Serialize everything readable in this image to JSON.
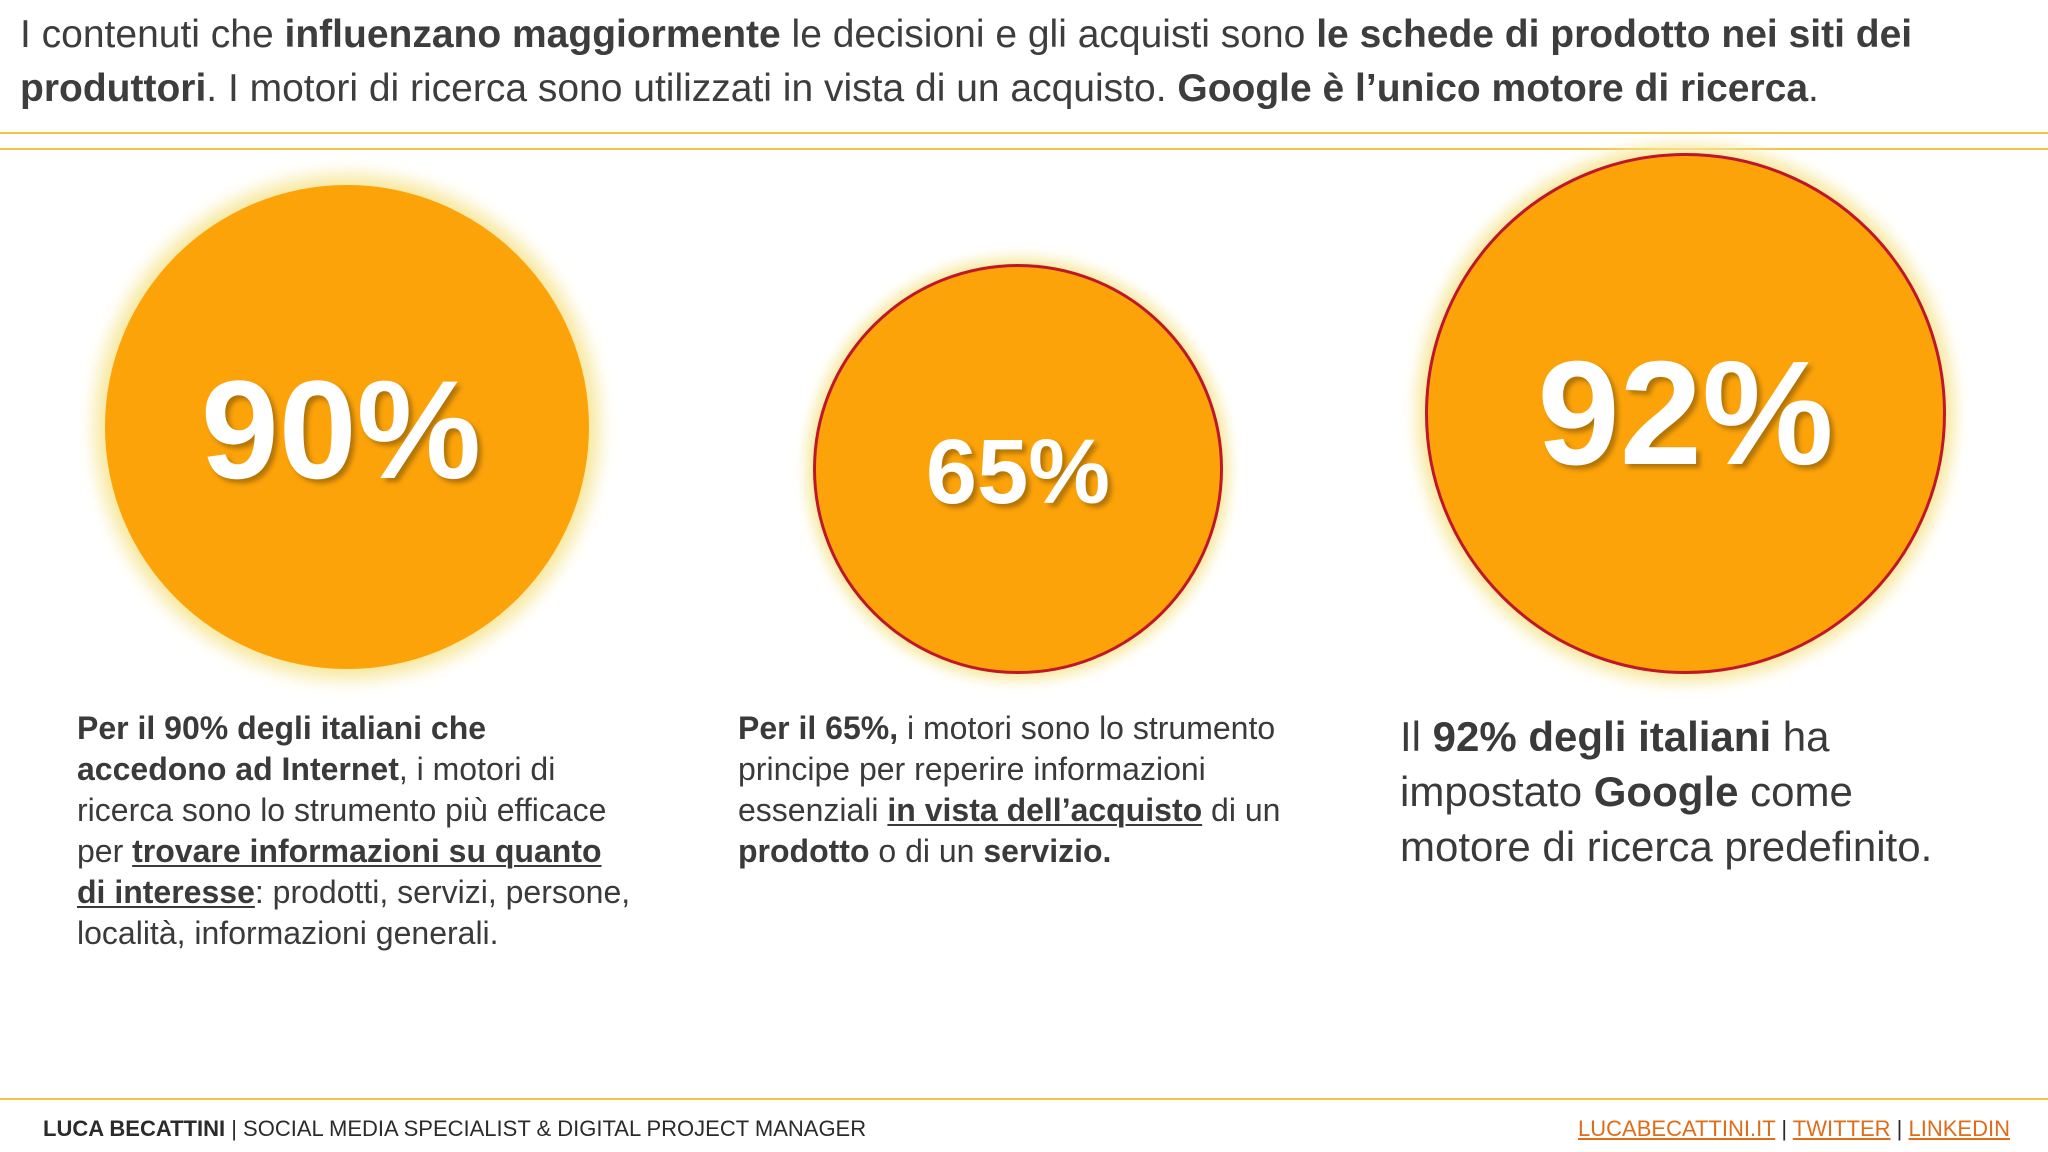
{
  "header": {
    "t1": "I contenuti che ",
    "t2": "influenzano maggiormente",
    "t3": " le decisioni e gli acquisti sono ",
    "t4": "le schede di prodotto nei siti dei produttori",
    "t5": ". I motori di ricerca sono utilizzati in vista di un acquisto. ",
    "t6": "Google è l’unico motore di ricerca",
    "t7": "."
  },
  "stats": [
    {
      "value": "90%",
      "d1": "Per il 90% degli italiani che accedono ad Internet",
      "d2": ", i motori di ricerca sono lo strumento più efficace per ",
      "d3": "trovare informazioni su quanto di interesse",
      "d4": ": prodotti, servizi, persone, località, informazioni generali."
    },
    {
      "value": "65%",
      "d1": "Per il 65%,",
      "d2": " i motori sono lo strumento principe per reperire informazioni essenziali ",
      "d3": "in vista dell’acquisto",
      "d4": " di un ",
      "d5": "prodotto",
      "d6": " o di un ",
      "d7": "servizio."
    },
    {
      "value": "92%",
      "d1": "Il ",
      "d2": "92% degli italiani",
      "d3": " ha impostato ",
      "d4": "Google",
      "d5": " come motore di ricerca predefinito."
    }
  ],
  "footer": {
    "name": "LUCA BECATTINI",
    "role": " | SOCIAL MEDIA SPECIALIST & DIGITAL PROJECT MANAGER",
    "sep": " | ",
    "links": [
      "LUCABECATTINI.IT",
      "TWITTER",
      "LINKEDIN"
    ]
  },
  "colors": {
    "accent": "#fca30a",
    "rule": "#f3c247",
    "circle_border": "#c0162a",
    "link": "#e06c18"
  }
}
